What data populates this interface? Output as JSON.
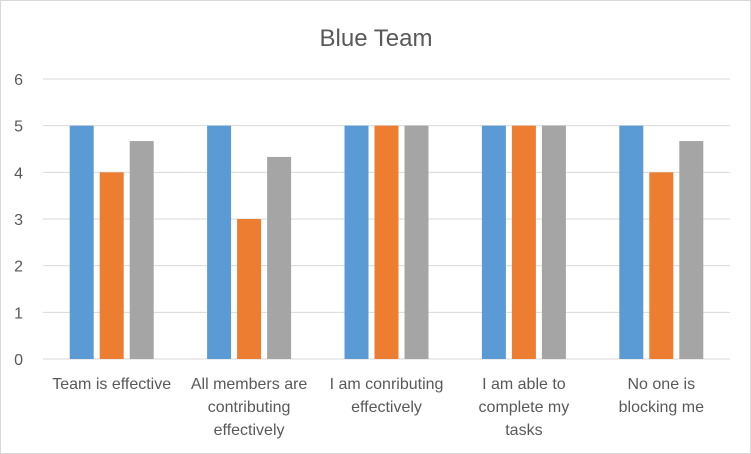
{
  "chart_data": {
    "type": "bar",
    "title": "Blue Team",
    "categories": [
      [
        "Team is effective"
      ],
      [
        "All members are",
        "contributing",
        "effectively"
      ],
      [
        "I am conributing",
        "effectively"
      ],
      [
        "I am able to",
        "complete my",
        "tasks"
      ],
      [
        "No one is",
        "blocking me"
      ]
    ],
    "series": [
      {
        "color": "#5B9BD5",
        "values": [
          5,
          5,
          5,
          5,
          5
        ]
      },
      {
        "color": "#ED7D31",
        "values": [
          4,
          3,
          5,
          5,
          4
        ]
      },
      {
        "color": "#A5A5A5",
        "values": [
          4.67,
          4.33,
          5,
          5,
          4.67
        ]
      }
    ],
    "ylim": [
      0,
      6
    ],
    "yticks": [
      "0",
      "1",
      "2",
      "3",
      "4",
      "5",
      "6"
    ],
    "grid": true,
    "legend": "none",
    "gridline_color": "#d9d9d9"
  }
}
